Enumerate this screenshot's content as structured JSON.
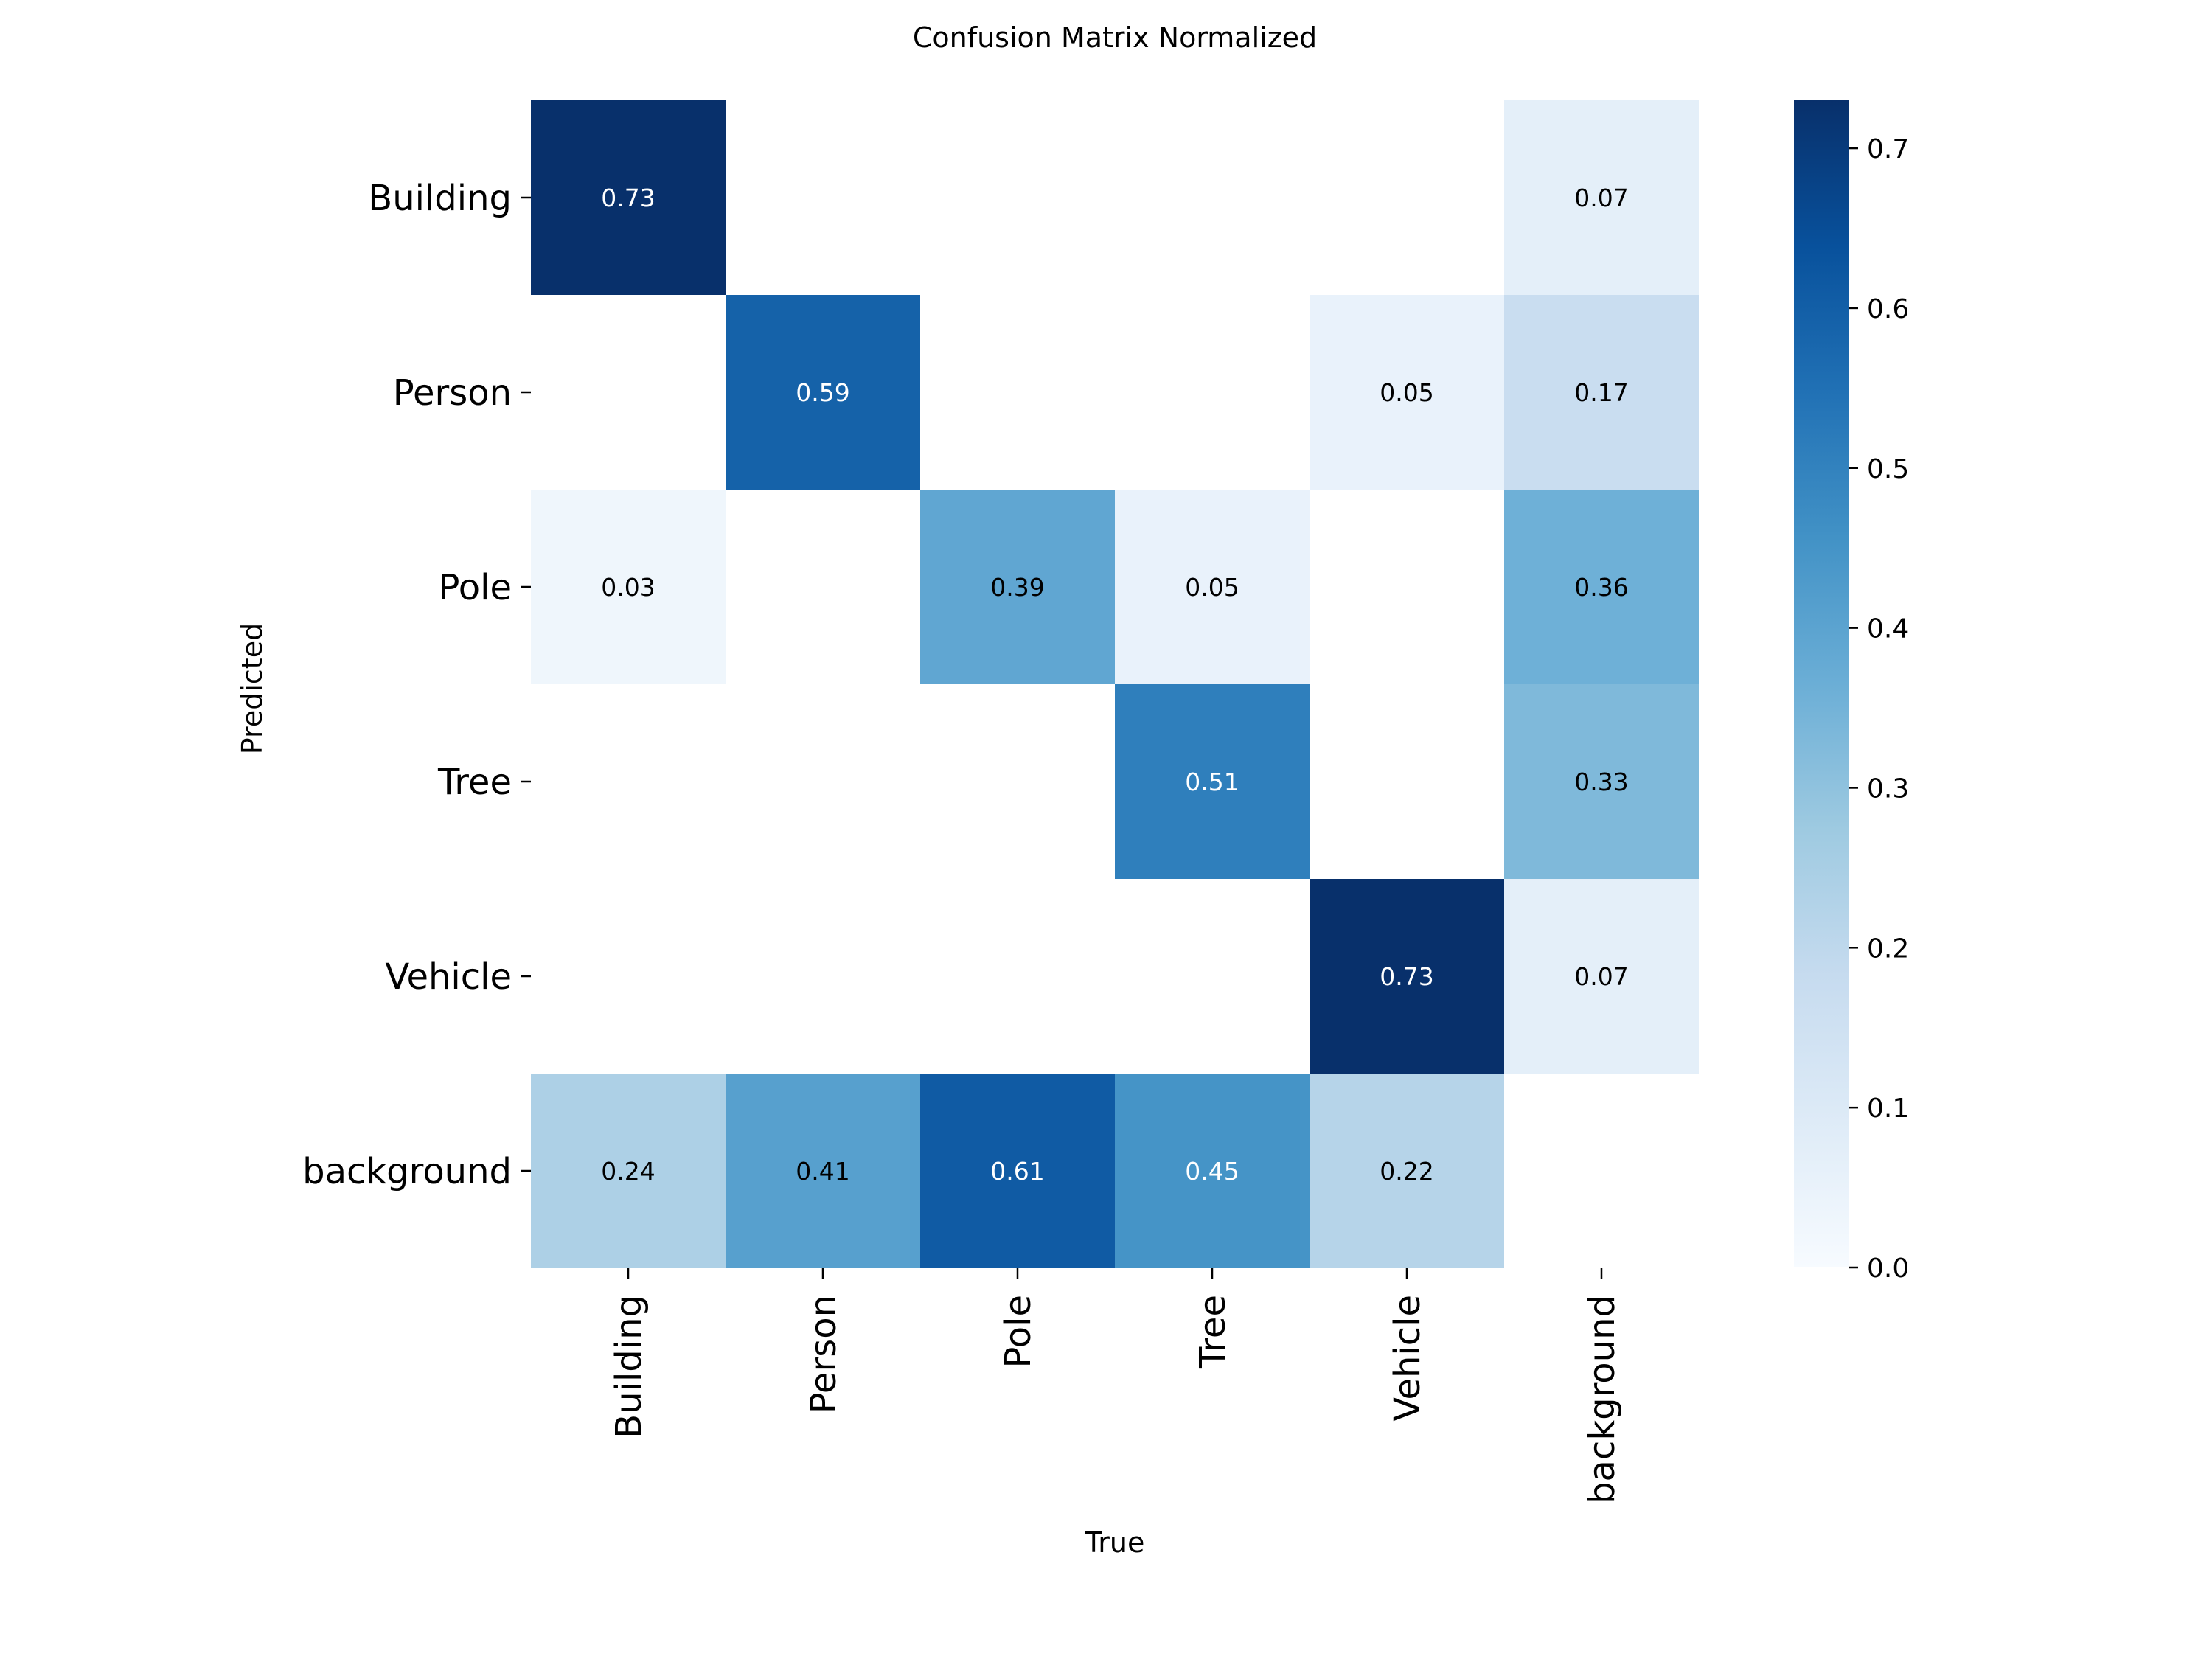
{
  "chart_data": {
    "type": "heatmap",
    "title": "Confusion Matrix Normalized",
    "xlabel": "True",
    "ylabel": "Predicted",
    "x_categories": [
      "Building",
      "Person",
      "Pole",
      "Tree",
      "Vehicle",
      "background"
    ],
    "y_categories": [
      "Building",
      "Person",
      "Pole",
      "Tree",
      "Vehicle",
      "background"
    ],
    "values": [
      [
        0.73,
        null,
        null,
        null,
        null,
        0.07
      ],
      [
        null,
        0.59,
        null,
        null,
        0.05,
        0.17
      ],
      [
        0.03,
        null,
        0.39,
        0.05,
        null,
        0.36
      ],
      [
        null,
        null,
        null,
        0.51,
        null,
        0.33
      ],
      [
        null,
        null,
        null,
        null,
        0.73,
        0.07
      ],
      [
        0.24,
        0.41,
        0.61,
        0.45,
        0.22,
        null
      ]
    ],
    "value_labels": [
      [
        "0.73",
        "",
        "",
        "",
        "",
        "0.07"
      ],
      [
        "",
        "0.59",
        "",
        "",
        "0.05",
        "0.17"
      ],
      [
        "0.03",
        "",
        "0.39",
        "0.05",
        "",
        "0.36"
      ],
      [
        "",
        "",
        "",
        "0.51",
        "",
        "0.33"
      ],
      [
        "",
        "",
        "",
        "",
        "0.73",
        "0.07"
      ],
      [
        "0.24",
        "0.41",
        "0.61",
        "0.45",
        "0.22",
        ""
      ]
    ],
    "colorbar": {
      "min": 0.0,
      "max": 0.73,
      "ticks": [
        0.0,
        0.1,
        0.2,
        0.3,
        0.4,
        0.5,
        0.6,
        0.7
      ],
      "tick_labels": [
        "0.0",
        "0.1",
        "0.2",
        "0.3",
        "0.4",
        "0.5",
        "0.6",
        "0.7"
      ],
      "colormap": "Blues"
    },
    "legend": "none",
    "grid": false
  }
}
